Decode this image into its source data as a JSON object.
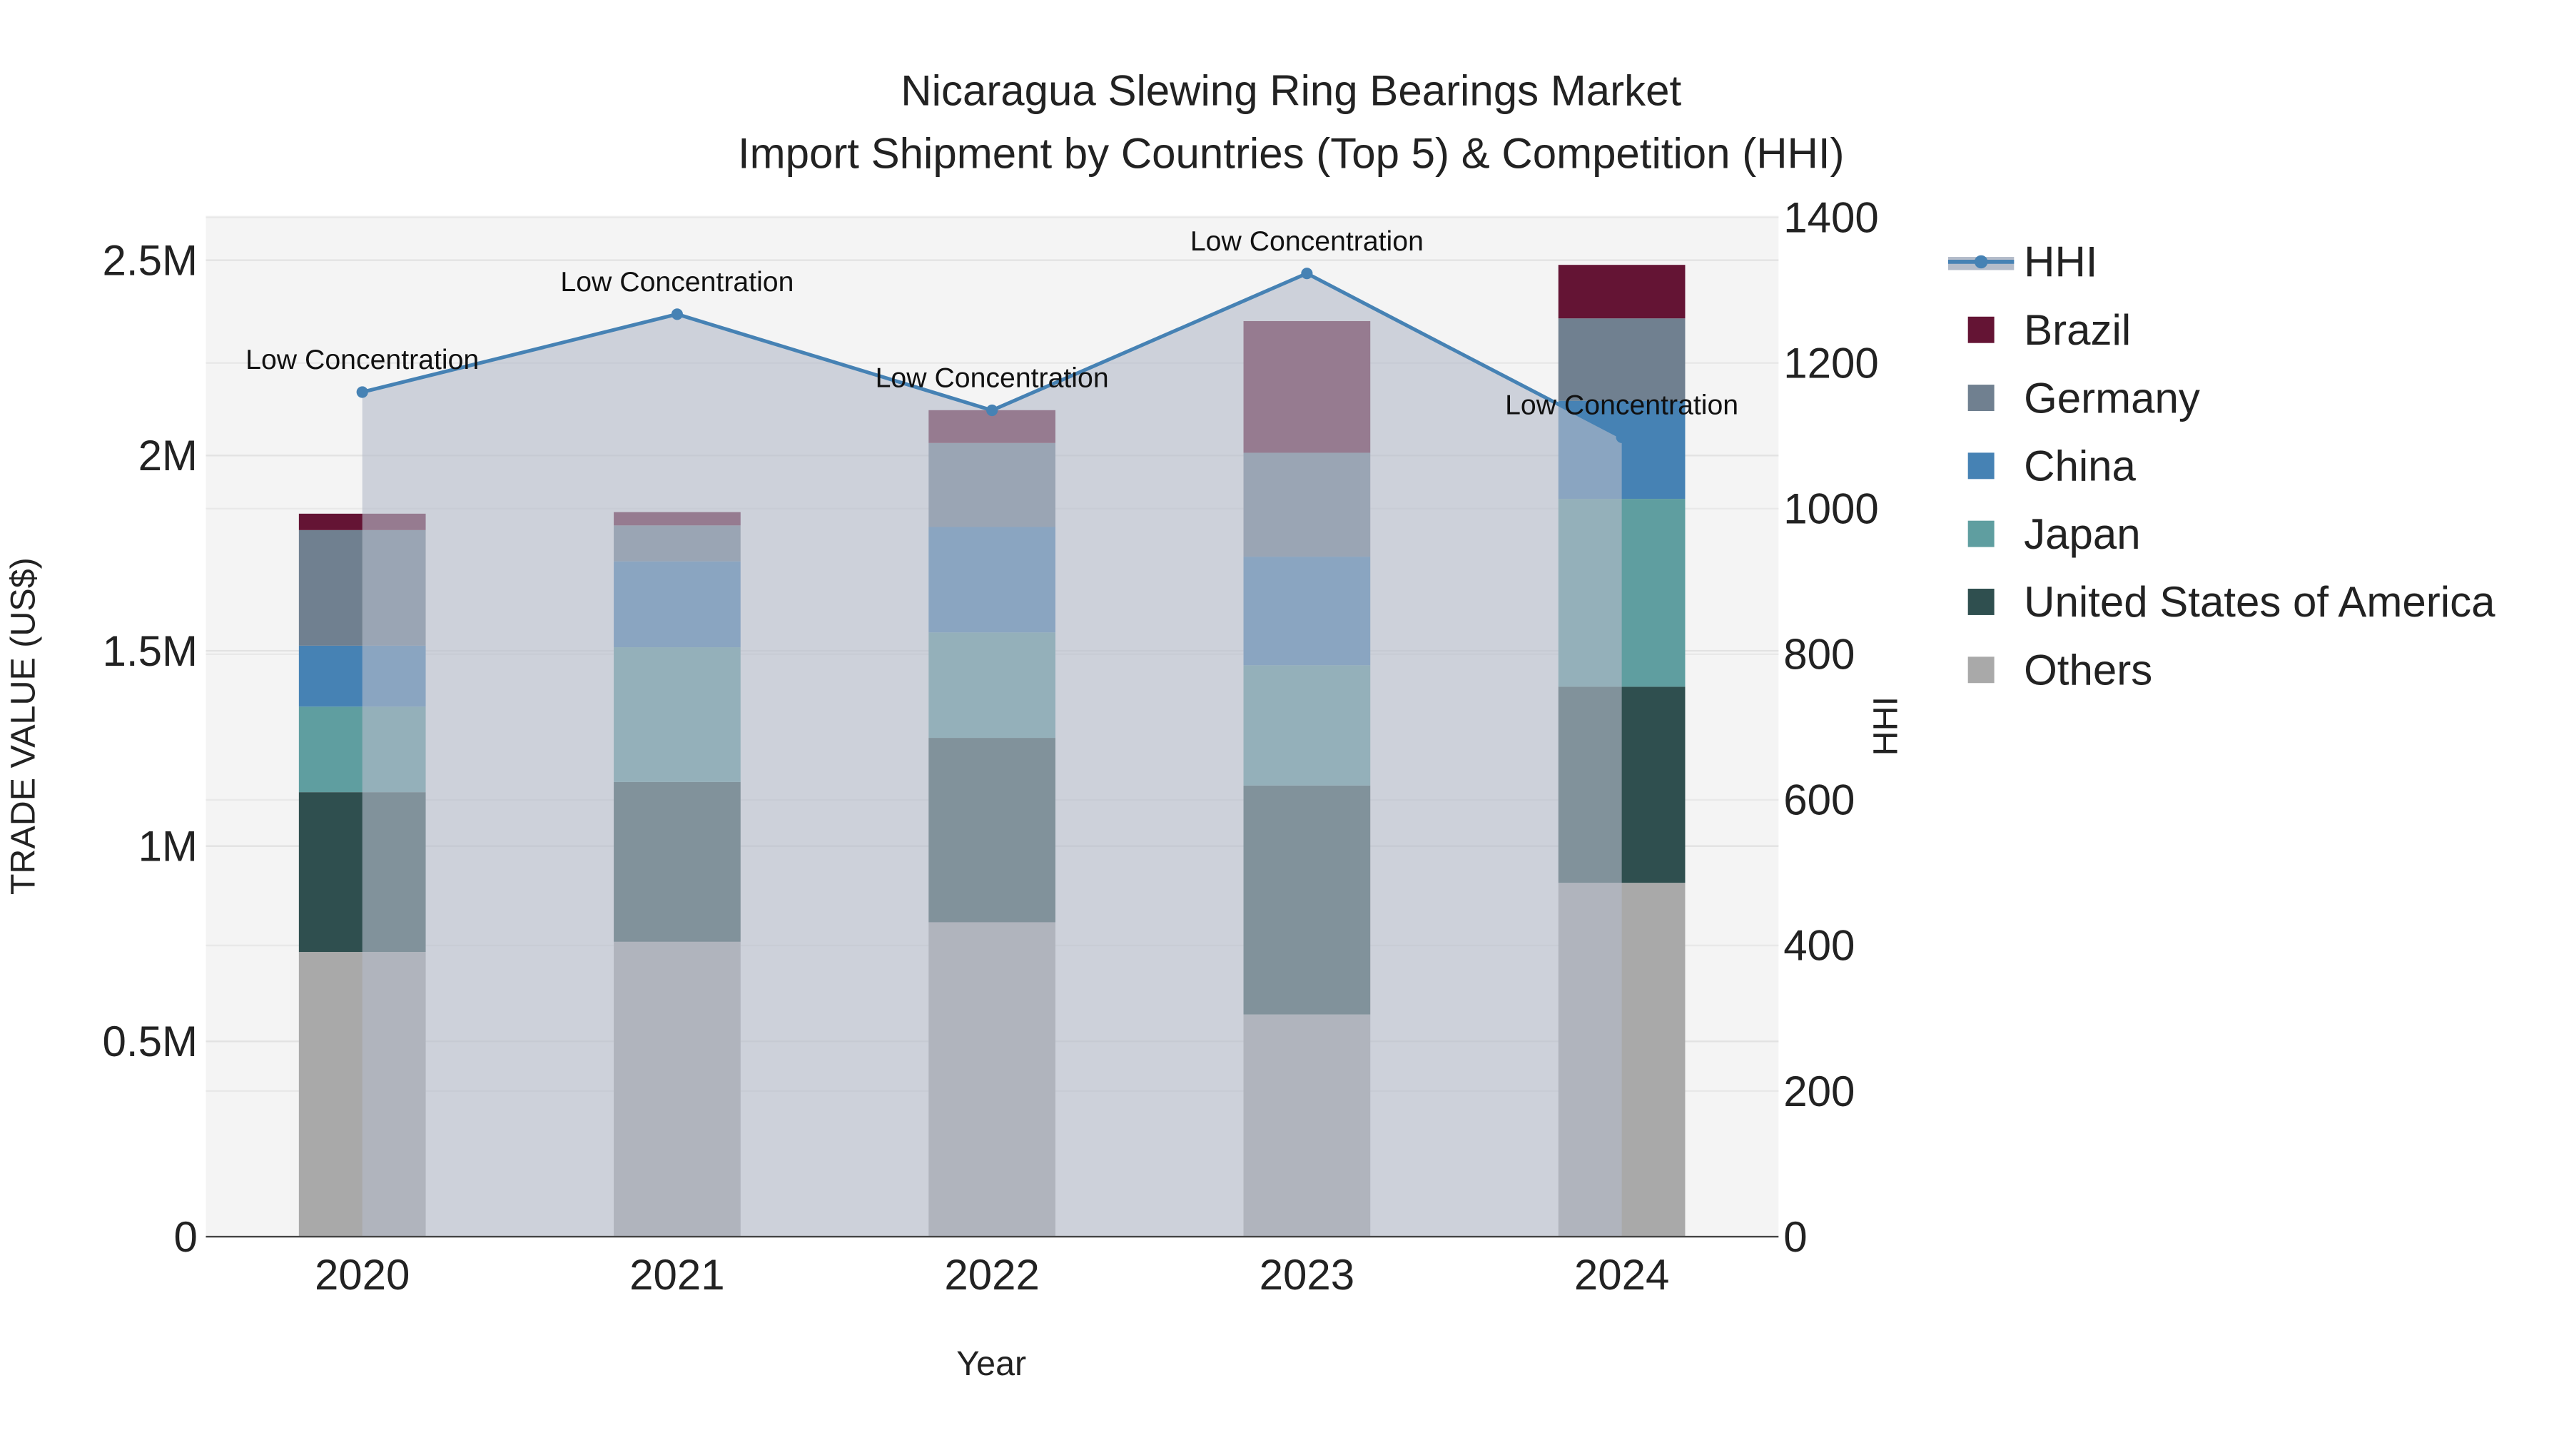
{
  "chart_data": {
    "type": "bar",
    "title": "Nicaragua Slewing Ring Bearings Market",
    "subtitle": "Import Shipment by Countries (Top 5) & Competition (HHI)",
    "xlabel": "Year",
    "ylabel": "TRADE VALUE (US$)",
    "y2label": "HHI",
    "categories": [
      "2020",
      "2021",
      "2022",
      "2023",
      "2024"
    ],
    "ylim": [
      0,
      2600000
    ],
    "y2lim": [
      0,
      1400
    ],
    "yticks": [
      {
        "v": 0,
        "label": "0"
      },
      {
        "v": 500000,
        "label": "0.5M"
      },
      {
        "v": 1000000,
        "label": "1M"
      },
      {
        "v": 1500000,
        "label": "1.5M"
      },
      {
        "v": 2000000,
        "label": "2M"
      },
      {
        "v": 2500000,
        "label": "2.5M"
      }
    ],
    "y2ticks": [
      0,
      200,
      400,
      600,
      800,
      1000,
      1200,
      1400
    ],
    "stacked": true,
    "series": [
      {
        "name": "Others",
        "color": "#A9A9A9",
        "values": [
          729000,
          755000,
          805000,
          569000,
          906000
        ]
      },
      {
        "name": "United States of America",
        "color": "#2F4F4F",
        "values": [
          409000,
          409000,
          472000,
          586000,
          502000
        ]
      },
      {
        "name": "Japan",
        "color": "#5F9EA0",
        "values": [
          219000,
          345000,
          270000,
          308000,
          481000
        ]
      },
      {
        "name": "China",
        "color": "#4682B4",
        "values": [
          156000,
          220000,
          270000,
          278000,
          251000
        ]
      },
      {
        "name": "Germany",
        "color": "#708090",
        "values": [
          296000,
          92000,
          215000,
          266000,
          211000
        ]
      },
      {
        "name": "Brazil",
        "color": "#641434",
        "values": [
          42000,
          34000,
          84000,
          337000,
          137000
        ]
      }
    ],
    "hhi": {
      "name": "HHI",
      "color": "#4682B4",
      "values": [
        1160,
        1267,
        1135,
        1323,
        1098
      ],
      "annotations": [
        "Low Concentration",
        "Low Concentration",
        "Low Concentration",
        "Low Concentration",
        "Low Concentration"
      ]
    },
    "legend_order": [
      "HHI",
      "Brazil",
      "Germany",
      "China",
      "Japan",
      "United States of America",
      "Others"
    ],
    "legend_position": "right",
    "grid": true
  }
}
